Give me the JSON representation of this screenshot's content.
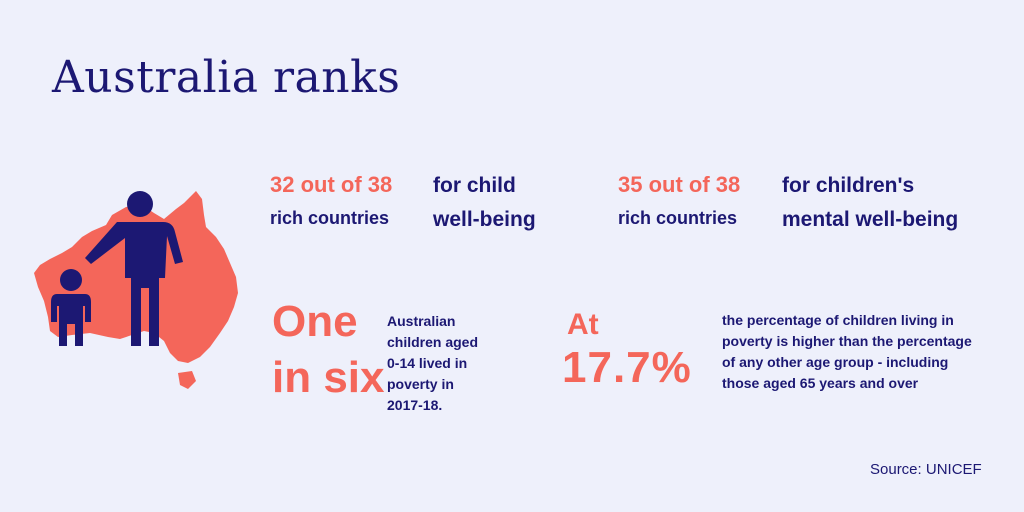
{
  "title": "Australia ranks",
  "rank_child": {
    "number": "32 out of 38",
    "sub": "rich countries",
    "desc_line1": "for child",
    "desc_line2": "well-being"
  },
  "rank_mental": {
    "number": "35 out of 38",
    "sub": "rich countries",
    "desc_line1": "for children's",
    "desc_line2": "mental well-being"
  },
  "poverty": {
    "big_line1": "One",
    "big_line2": "in six",
    "small_lines": [
      "Australian",
      "children aged",
      "0-14 lived in",
      "poverty in",
      "2017-18."
    ]
  },
  "percentage": {
    "at": "At",
    "value": "17.7%",
    "lines": [
      "the percentage of children living in",
      "poverty is higher than the percentage",
      "of any other age group - including",
      "those aged 65 years and over"
    ]
  },
  "source": "Source: UNICEF",
  "colors": {
    "background": "#eef0fb",
    "navy": "#1c1873",
    "coral": "#f4665a"
  },
  "icons": {
    "map": "australia-map-icon",
    "figures": "adult-child-figures-icon"
  }
}
